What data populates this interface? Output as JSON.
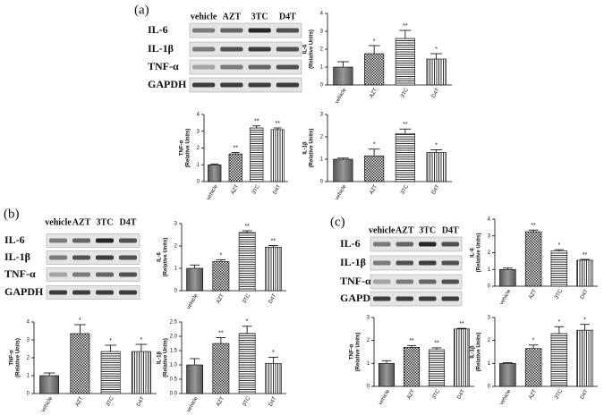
{
  "panel_labels": [
    "(a)",
    "(b)",
    "(c)"
  ],
  "blots": [
    {
      "columns": [
        "vehicle",
        "AZT",
        "3TC",
        "D4T"
      ],
      "rows": [
        "IL-6",
        "IL-1β",
        "TNF-α",
        "GAPDH"
      ]
    },
    {
      "columns": [
        "vehicle",
        "AZT",
        "3TC",
        "D4T"
      ],
      "rows": [
        "IL-6",
        "IL-1β",
        "TNF-α",
        "GAPDH"
      ]
    },
    {
      "columns": [
        "vehicle",
        "AZT",
        "3TC",
        "D4T"
      ],
      "rows": [
        "IL-6",
        "IL-1β",
        "TNF-α",
        "GAPDH"
      ]
    }
  ],
  "chart_data": [
    {
      "type": "bar",
      "ylabel": "IL-6",
      "ylabel_unit": "(Relative Units)",
      "categories": [
        "vehicle",
        "AZT",
        "3TC",
        "D4T"
      ],
      "values": [
        1.0,
        1.75,
        2.6,
        1.45
      ],
      "errors": [
        0.3,
        0.45,
        0.45,
        0.3
      ],
      "annotations": [
        null,
        "*",
        "**",
        "*"
      ],
      "ylim": [
        0,
        4
      ],
      "yticks": [
        0,
        1,
        2,
        3,
        4
      ]
    },
    {
      "type": "bar",
      "ylabel": "TNF-α",
      "ylabel_unit": "(Relative Units)",
      "categories": [
        "vehicle",
        "AZT",
        "3TC",
        "D4T"
      ],
      "values": [
        1.0,
        1.65,
        3.2,
        3.1
      ],
      "errors": [
        0.05,
        0.08,
        0.12,
        0.1
      ],
      "annotations": [
        null,
        "**",
        "**",
        "**"
      ],
      "ylim": [
        0,
        4
      ],
      "yticks": [
        0,
        1,
        2,
        3,
        4
      ]
    },
    {
      "type": "bar",
      "ylabel": "IL-1β",
      "ylabel_unit": "(Relative Units)",
      "categories": [
        "vehicle",
        "AZT",
        "3TC",
        "D4T"
      ],
      "values": [
        1.0,
        1.15,
        2.15,
        1.3
      ],
      "errors": [
        0.05,
        0.3,
        0.2,
        0.12
      ],
      "annotations": [
        null,
        "*",
        "**",
        "*"
      ],
      "ylim": [
        0,
        3
      ],
      "yticks": [
        0,
        1,
        2,
        3
      ]
    },
    {
      "type": "bar",
      "ylabel": "IL-6",
      "ylabel_unit": "(Relative Units)",
      "categories": [
        "vehicle",
        "AZT",
        "3TC",
        "D4T"
      ],
      "values": [
        1.0,
        1.3,
        2.6,
        1.95
      ],
      "errors": [
        0.15,
        0.08,
        0.08,
        0.07
      ],
      "annotations": [
        null,
        "*",
        "**",
        "**"
      ],
      "ylim": [
        0,
        3
      ],
      "yticks": [
        0,
        1,
        2,
        3
      ]
    },
    {
      "type": "bar",
      "ylabel": "TNF-α",
      "ylabel_unit": "(Relative Units)",
      "categories": [
        "vehicle",
        "AZT",
        "3TC",
        "D4T"
      ],
      "values": [
        1.0,
        3.35,
        2.35,
        2.35
      ],
      "errors": [
        0.15,
        0.5,
        0.35,
        0.4
      ],
      "annotations": [
        null,
        "*",
        "*",
        "*"
      ],
      "ylim": [
        0,
        4
      ],
      "yticks": [
        0,
        1,
        2,
        3,
        4
      ]
    },
    {
      "type": "bar",
      "ylabel": "IL-1β",
      "ylabel_unit": "(Relative Units)",
      "categories": [
        "vehicle",
        "AZT",
        "3TC",
        "D4T"
      ],
      "values": [
        1.0,
        1.75,
        2.1,
        1.05
      ],
      "errors": [
        0.22,
        0.2,
        0.25,
        0.22
      ],
      "annotations": [
        null,
        "**",
        "*",
        "*"
      ],
      "ylim": [
        0,
        2.5
      ],
      "yticks": [
        {
          "value": 0,
          "label": "0.0"
        },
        0.5,
        {
          "value": 1,
          "label": "1.0"
        },
        1.5,
        {
          "value": 2,
          "label": "2.0"
        },
        2.5
      ]
    },
    {
      "type": "bar",
      "ylabel": "IL-6",
      "ylabel_unit": "(Relative Units)",
      "categories": [
        "vehicle",
        "AZT",
        "3TC",
        "D4T"
      ],
      "values": [
        1.0,
        3.25,
        2.1,
        1.55
      ],
      "errors": [
        0.08,
        0.1,
        0.08,
        0.05
      ],
      "annotations": [
        null,
        "**",
        "*",
        "**"
      ],
      "ylim": [
        0,
        4
      ],
      "yticks": [
        0,
        1,
        2,
        3,
        4
      ]
    },
    {
      "type": "bar",
      "ylabel": "TNF-α",
      "ylabel_unit": "(Relative Units)",
      "categories": [
        "vehicle",
        "AZT",
        "3TC",
        "D4T"
      ],
      "values": [
        1.0,
        1.7,
        1.6,
        2.5
      ],
      "errors": [
        0.12,
        0.08,
        0.08,
        0.03
      ],
      "annotations": [
        null,
        "**",
        "**",
        "**"
      ],
      "ylim": [
        0,
        3
      ],
      "yticks": [
        0,
        1,
        2,
        3
      ]
    },
    {
      "type": "bar",
      "ylabel": "IL-1β",
      "ylabel_unit": "(Relative Units)",
      "categories": [
        "vehicle",
        "AZT",
        "3TC",
        "D4T"
      ],
      "values": [
        1.0,
        1.65,
        2.3,
        2.45
      ],
      "errors": [
        0.03,
        0.15,
        0.3,
        0.25
      ],
      "annotations": [
        null,
        "*",
        "*",
        "*"
      ],
      "ylim": [
        0,
        3
      ],
      "yticks": [
        0,
        1,
        2,
        3
      ]
    }
  ]
}
